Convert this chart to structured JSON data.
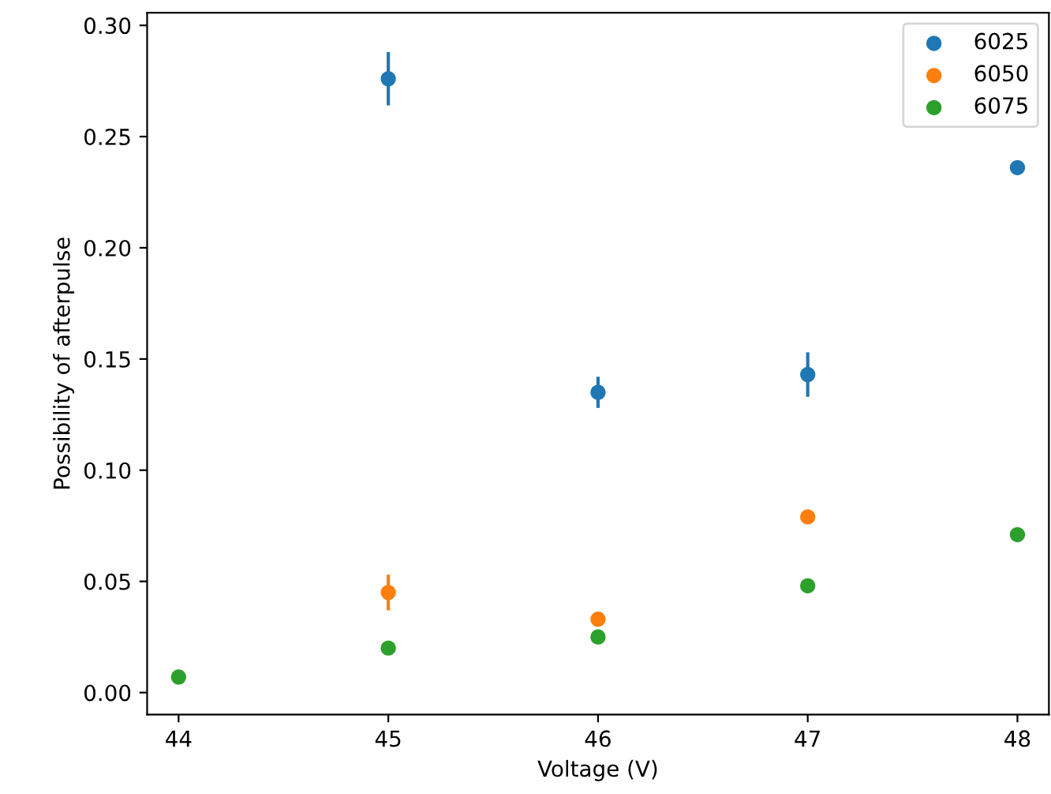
{
  "chart_data": {
    "type": "scatter",
    "xlabel": "Voltage (V)",
    "ylabel": "Possibility of afterpulse",
    "x": [
      44,
      45,
      46,
      47,
      48
    ],
    "series": [
      {
        "name": "6025",
        "color": "#1f77b4",
        "values": [
          null,
          0.276,
          0.135,
          0.143,
          0.236
        ],
        "errors": [
          null,
          0.012,
          0.007,
          0.01,
          0.002
        ]
      },
      {
        "name": "6050",
        "color": "#ff7f0e",
        "values": [
          null,
          0.045,
          0.033,
          0.079,
          null
        ],
        "errors": [
          null,
          0.008,
          0.003,
          0.003,
          null
        ]
      },
      {
        "name": "6075",
        "color": "#2ca02c",
        "values": [
          0.007,
          0.02,
          0.025,
          0.048,
          0.071
        ],
        "errors": [
          0.002,
          0.002,
          0.002,
          0.002,
          0.002
        ]
      }
    ],
    "xlim": [
      43.85,
      48.15
    ],
    "xticks": [
      44,
      45,
      46,
      47,
      48
    ],
    "ylim": [
      -0.0099,
      0.3057
    ],
    "yticks": [
      {
        "value": 0,
        "label": "0.00"
      },
      {
        "value": 0.05,
        "label": "0.05"
      },
      {
        "value": 0.1,
        "label": "0.10"
      },
      {
        "value": 0.15,
        "label": "0.15"
      },
      {
        "value": 0.2,
        "label": "0.20"
      },
      {
        "value": 0.25,
        "label": "0.25"
      },
      {
        "value": 0.3,
        "label": "0.30"
      }
    ],
    "marker": "circle",
    "legend": "top right",
    "grid": false
  }
}
